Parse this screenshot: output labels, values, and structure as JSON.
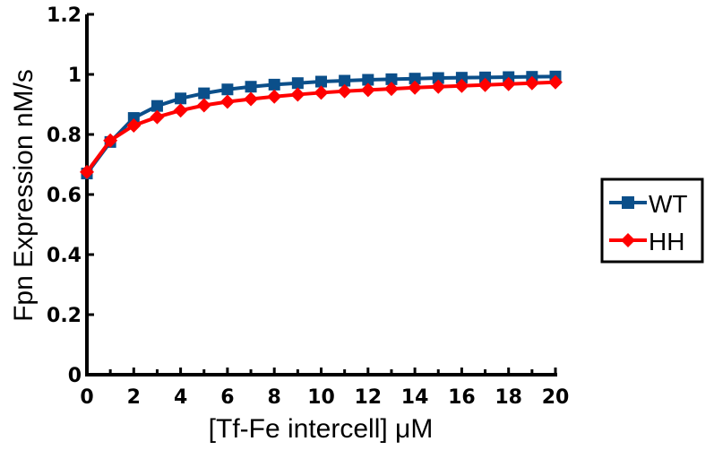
{
  "chart_data": {
    "type": "line",
    "xlabel": "[Tf-Fe intercell] μM",
    "ylabel": "Fpn Expression nM/s",
    "xlim": [
      0,
      20
    ],
    "ylim": [
      0,
      1.2
    ],
    "xticks": [
      "0",
      "2",
      "4",
      "6",
      "8",
      "10",
      "12",
      "14",
      "16",
      "18",
      "20"
    ],
    "yticks": [
      "0",
      "0.2",
      "0.4",
      "0.6",
      "0.8",
      "1",
      "1.2"
    ],
    "grid": false,
    "legend_position": "right",
    "x": [
      0,
      1,
      2,
      3,
      4,
      5,
      6,
      7,
      8,
      9,
      10,
      11,
      12,
      13,
      14,
      15,
      16,
      17,
      18,
      19,
      20
    ],
    "series": [
      {
        "name": "WT",
        "color": "#0b4f8a",
        "marker": "square",
        "values": [
          0.67,
          0.775,
          0.855,
          0.895,
          0.92,
          0.937,
          0.95,
          0.959,
          0.966,
          0.971,
          0.976,
          0.979,
          0.982,
          0.984,
          0.986,
          0.988,
          0.989,
          0.99,
          0.991,
          0.992,
          0.993
        ]
      },
      {
        "name": "HH",
        "color": "#ff0000",
        "marker": "diamond",
        "values": [
          0.675,
          0.78,
          0.83,
          0.858,
          0.88,
          0.897,
          0.909,
          0.918,
          0.926,
          0.933,
          0.939,
          0.944,
          0.948,
          0.952,
          0.956,
          0.959,
          0.962,
          0.965,
          0.968,
          0.971,
          0.974
        ]
      }
    ]
  }
}
